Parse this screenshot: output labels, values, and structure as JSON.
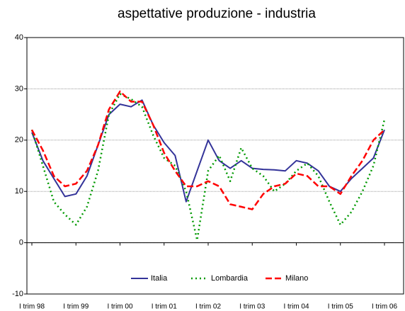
{
  "chart_data": {
    "type": "line",
    "title": "aspettative produzione - industria",
    "categories": [
      "I trim 98",
      null,
      null,
      null,
      "I trim 99",
      null,
      null,
      null,
      "I trim 00",
      null,
      null,
      null,
      "I trim 01",
      null,
      null,
      null,
      "I trim 02",
      null,
      null,
      null,
      "I trim 03",
      null,
      null,
      null,
      "I trim 04",
      null,
      null,
      null,
      "I trim 05",
      null,
      null,
      null,
      "I trim 06"
    ],
    "series": [
      {
        "name": "Italia",
        "color": "#333399",
        "values": [
          21.5,
          16,
          12.5,
          9,
          9.5,
          13,
          19,
          25,
          27,
          26.5,
          27.8,
          23,
          19.5,
          17,
          8,
          14,
          20,
          16,
          14.5,
          16,
          14.5,
          14.3,
          14.2,
          14,
          16,
          15.5,
          14,
          11,
          10,
          12.5,
          14.5,
          16.5,
          22
        ]
      },
      {
        "name": "Lombardia",
        "color": "#009900",
        "values": [
          22,
          15,
          8,
          5.5,
          3.5,
          7,
          14,
          25,
          29,
          28,
          26.5,
          21,
          16.5,
          15,
          10,
          0.5,
          14,
          17,
          12,
          18.5,
          14.5,
          13,
          10,
          11.5,
          14,
          15.5,
          13,
          8,
          3.5,
          6,
          10,
          15,
          24
        ]
      },
      {
        "name": "Milano",
        "color": "#ff0000",
        "values": [
          22,
          18,
          13,
          11,
          11.5,
          14,
          19,
          26,
          29.5,
          27.5,
          27.5,
          23,
          17.5,
          14,
          11,
          11,
          12,
          11,
          7.5,
          7,
          6.5,
          9.5,
          11,
          11.5,
          13.5,
          13,
          11,
          11,
          9.5,
          13,
          16,
          20,
          22
        ]
      }
    ],
    "ylim": [
      -10,
      40
    ],
    "yticks": [
      -10,
      0,
      10,
      20,
      30,
      40
    ],
    "grid": true,
    "legend": "bottom"
  }
}
